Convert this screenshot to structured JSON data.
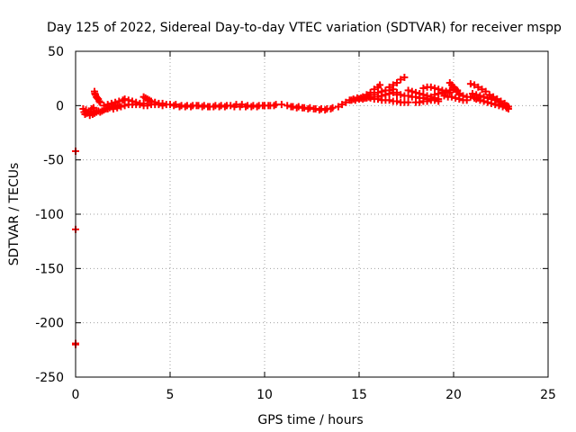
{
  "chart_data": {
    "type": "scatter",
    "title": "Day 125 of 2022, Sidereal Day-to-day VTEC variation (SDTVAR) for receiver mspp",
    "xlabel": "GPS time / hours",
    "ylabel": "SDTVAR / TECUs",
    "xlim": [
      0,
      25
    ],
    "ylim": [
      -250,
      50
    ],
    "xticks": [
      0,
      5,
      10,
      15,
      20,
      25
    ],
    "yticks": [
      -250,
      -200,
      -150,
      -100,
      -50,
      0,
      50
    ],
    "grid": true,
    "marker": "+",
    "series": [
      {
        "name": "SDTVAR",
        "color": "#ff0000",
        "points": [
          [
            0.0,
            -42
          ],
          [
            0.0,
            -114
          ],
          [
            0.0,
            -219
          ],
          [
            0.0,
            -220
          ],
          [
            0.4,
            -3
          ],
          [
            0.45,
            -6
          ],
          [
            0.5,
            -8
          ],
          [
            0.55,
            -4
          ],
          [
            0.6,
            -7
          ],
          [
            0.7,
            -5
          ],
          [
            0.75,
            -9
          ],
          [
            0.8,
            -6
          ],
          [
            0.85,
            -3
          ],
          [
            0.9,
            -8
          ],
          [
            0.95,
            -2
          ],
          [
            1.0,
            13
          ],
          [
            1.02,
            11
          ],
          [
            1.05,
            10
          ],
          [
            1.1,
            8
          ],
          [
            1.15,
            7
          ],
          [
            1.2,
            6
          ],
          [
            1.25,
            4
          ],
          [
            1.3,
            3
          ],
          [
            1.0,
            -7
          ],
          [
            1.1,
            -6
          ],
          [
            1.2,
            -5
          ],
          [
            1.3,
            -6
          ],
          [
            1.4,
            -5
          ],
          [
            1.5,
            -4
          ],
          [
            1.6,
            -3
          ],
          [
            1.7,
            -3
          ],
          [
            1.8,
            -2
          ],
          [
            1.9,
            -1
          ],
          [
            2.0,
            -1
          ],
          [
            2.1,
            0
          ],
          [
            2.2,
            0
          ],
          [
            2.3,
            0
          ],
          [
            1.5,
            0
          ],
          [
            1.7,
            1
          ],
          [
            1.9,
            2
          ],
          [
            2.1,
            3
          ],
          [
            2.3,
            4
          ],
          [
            2.5,
            5
          ],
          [
            2.6,
            6
          ],
          [
            2.8,
            5
          ],
          [
            3.0,
            4
          ],
          [
            3.2,
            3
          ],
          [
            3.4,
            2
          ],
          [
            3.6,
            2
          ],
          [
            2.0,
            -3
          ],
          [
            2.2,
            -2
          ],
          [
            2.4,
            -1
          ],
          [
            2.6,
            0
          ],
          [
            2.8,
            1
          ],
          [
            3.0,
            1
          ],
          [
            3.2,
            1
          ],
          [
            3.4,
            1
          ],
          [
            3.6,
            8
          ],
          [
            3.7,
            7
          ],
          [
            3.8,
            6
          ],
          [
            3.9,
            5
          ],
          [
            4.0,
            4
          ],
          [
            4.2,
            3
          ],
          [
            4.4,
            2
          ],
          [
            4.6,
            2
          ],
          [
            4.8,
            1
          ],
          [
            3.6,
            0
          ],
          [
            3.8,
            0
          ],
          [
            4.0,
            1
          ],
          [
            4.2,
            1
          ],
          [
            4.4,
            1
          ],
          [
            4.6,
            0
          ],
          [
            5.0,
            1
          ],
          [
            5.3,
            1
          ],
          [
            5.6,
            0
          ],
          [
            5.9,
            0
          ],
          [
            6.2,
            0
          ],
          [
            6.5,
            0
          ],
          [
            6.8,
            0
          ],
          [
            7.1,
            -1
          ],
          [
            7.4,
            0
          ],
          [
            7.7,
            0
          ],
          [
            8.0,
            0
          ],
          [
            5.2,
            0
          ],
          [
            5.5,
            -1
          ],
          [
            5.8,
            -1
          ],
          [
            6.1,
            -1
          ],
          [
            6.4,
            0
          ],
          [
            6.7,
            -1
          ],
          [
            7.0,
            -1
          ],
          [
            7.3,
            -1
          ],
          [
            7.6,
            -1
          ],
          [
            7.9,
            -1
          ],
          [
            8.2,
            0
          ],
          [
            8.5,
            1
          ],
          [
            8.8,
            1
          ],
          [
            9.1,
            0
          ],
          [
            9.4,
            0
          ],
          [
            9.7,
            0
          ],
          [
            10.0,
            0
          ],
          [
            10.3,
            0
          ],
          [
            10.6,
            1
          ],
          [
            10.9,
            1
          ],
          [
            8.4,
            -1
          ],
          [
            8.7,
            -1
          ],
          [
            9.0,
            -1
          ],
          [
            9.3,
            -1
          ],
          [
            9.6,
            -1
          ],
          [
            9.9,
            0
          ],
          [
            10.2,
            0
          ],
          [
            10.5,
            0
          ],
          [
            11.2,
            0
          ],
          [
            11.5,
            -1
          ],
          [
            11.8,
            -1
          ],
          [
            12.1,
            -2
          ],
          [
            12.4,
            -2
          ],
          [
            12.7,
            -3
          ],
          [
            13.0,
            -3
          ],
          [
            13.3,
            -3
          ],
          [
            13.6,
            -2
          ],
          [
            13.9,
            -1
          ],
          [
            11.4,
            -1
          ],
          [
            11.7,
            -2
          ],
          [
            12.0,
            -2
          ],
          [
            12.3,
            -3
          ],
          [
            12.6,
            -3
          ],
          [
            12.9,
            -4
          ],
          [
            13.2,
            -4
          ],
          [
            13.5,
            -3
          ],
          [
            14.1,
            1
          ],
          [
            14.3,
            3
          ],
          [
            14.5,
            5
          ],
          [
            14.7,
            6
          ],
          [
            14.9,
            7
          ],
          [
            15.1,
            7
          ],
          [
            15.3,
            7
          ],
          [
            15.5,
            8
          ],
          [
            14.6,
            5
          ],
          [
            14.8,
            5
          ],
          [
            15.0,
            6
          ],
          [
            15.2,
            6
          ],
          [
            15.4,
            7
          ],
          [
            15.6,
            7
          ],
          [
            15.2,
            8
          ],
          [
            15.4,
            10
          ],
          [
            15.6,
            12
          ],
          [
            15.8,
            15
          ],
          [
            16.0,
            17
          ],
          [
            16.1,
            19
          ],
          [
            15.6,
            8
          ],
          [
            15.8,
            10
          ],
          [
            16.0,
            12
          ],
          [
            16.2,
            13
          ],
          [
            16.4,
            14
          ],
          [
            16.6,
            14
          ],
          [
            16.8,
            15
          ],
          [
            16.0,
            8
          ],
          [
            16.2,
            9
          ],
          [
            16.4,
            10
          ],
          [
            16.6,
            11
          ],
          [
            16.8,
            12
          ],
          [
            17.0,
            12
          ],
          [
            15.8,
            6
          ],
          [
            16.0,
            6
          ],
          [
            16.2,
            5
          ],
          [
            16.4,
            5
          ],
          [
            16.6,
            5
          ],
          [
            16.8,
            4
          ],
          [
            17.0,
            4
          ],
          [
            17.2,
            3
          ],
          [
            17.4,
            3
          ],
          [
            17.6,
            3
          ],
          [
            16.6,
            17
          ],
          [
            16.8,
            19
          ],
          [
            17.0,
            21
          ],
          [
            17.2,
            24
          ],
          [
            17.4,
            26
          ],
          [
            17.0,
            10
          ],
          [
            17.2,
            10
          ],
          [
            17.4,
            9
          ],
          [
            17.6,
            9
          ],
          [
            17.8,
            8
          ],
          [
            18.0,
            8
          ],
          [
            18.2,
            7
          ],
          [
            18.4,
            7
          ],
          [
            18.6,
            6
          ],
          [
            18.8,
            6
          ],
          [
            17.6,
            14
          ],
          [
            17.8,
            13
          ],
          [
            18.0,
            12
          ],
          [
            18.2,
            11
          ],
          [
            18.4,
            10
          ],
          [
            18.6,
            9
          ],
          [
            18.8,
            8
          ],
          [
            19.0,
            7
          ],
          [
            19.2,
            6
          ],
          [
            18.0,
            3
          ],
          [
            18.2,
            3
          ],
          [
            18.4,
            4
          ],
          [
            18.6,
            4
          ],
          [
            18.8,
            5
          ],
          [
            19.0,
            5
          ],
          [
            19.2,
            4
          ],
          [
            18.4,
            16
          ],
          [
            18.6,
            17
          ],
          [
            18.8,
            17
          ],
          [
            19.0,
            16
          ],
          [
            19.2,
            15
          ],
          [
            19.4,
            14
          ],
          [
            19.6,
            13
          ],
          [
            19.8,
            12
          ],
          [
            19.0,
            10
          ],
          [
            19.2,
            11
          ],
          [
            19.4,
            12
          ],
          [
            19.6,
            13
          ],
          [
            19.8,
            14
          ],
          [
            20.0,
            15
          ],
          [
            20.2,
            14
          ],
          [
            19.5,
            9
          ],
          [
            19.7,
            8
          ],
          [
            19.9,
            8
          ],
          [
            20.1,
            7
          ],
          [
            20.3,
            6
          ],
          [
            20.5,
            5
          ],
          [
            20.7,
            5
          ],
          [
            19.8,
            21
          ],
          [
            19.9,
            19
          ],
          [
            20.0,
            17
          ],
          [
            20.1,
            15
          ],
          [
            20.2,
            13
          ],
          [
            20.3,
            11
          ],
          [
            20.3,
            10
          ],
          [
            20.5,
            9
          ],
          [
            20.7,
            8
          ],
          [
            20.9,
            8
          ],
          [
            21.1,
            7
          ],
          [
            21.3,
            7
          ],
          [
            20.9,
            20
          ],
          [
            21.1,
            19
          ],
          [
            21.3,
            17
          ],
          [
            21.5,
            15
          ],
          [
            21.7,
            13
          ],
          [
            21.9,
            10
          ],
          [
            22.1,
            8
          ],
          [
            22.3,
            6
          ],
          [
            22.5,
            4
          ],
          [
            22.7,
            2
          ],
          [
            22.8,
            0
          ],
          [
            22.9,
            -1
          ],
          [
            21.0,
            11
          ],
          [
            21.2,
            10
          ],
          [
            21.4,
            9
          ],
          [
            21.6,
            8
          ],
          [
            21.8,
            7
          ],
          [
            22.0,
            6
          ],
          [
            22.2,
            5
          ],
          [
            22.4,
            3
          ],
          [
            22.6,
            1
          ],
          [
            22.8,
            -2
          ],
          [
            21.2,
            6
          ],
          [
            21.4,
            5
          ],
          [
            21.6,
            4
          ],
          [
            21.8,
            3
          ],
          [
            22.0,
            2
          ],
          [
            22.2,
            1
          ],
          [
            22.4,
            0
          ],
          [
            22.6,
            -1
          ],
          [
            22.8,
            -2
          ],
          [
            22.9,
            -3
          ]
        ]
      }
    ]
  }
}
